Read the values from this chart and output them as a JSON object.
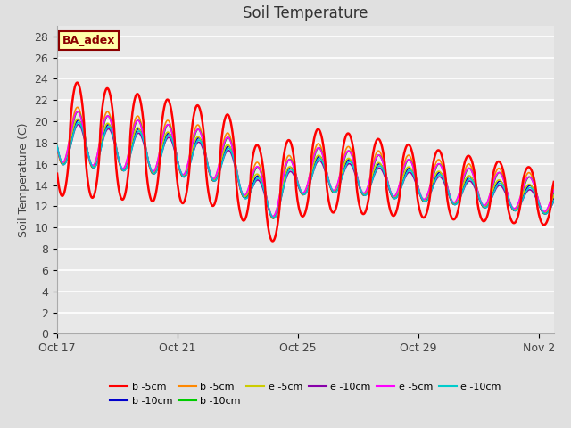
{
  "title": "Soil Temperature",
  "ylabel": "Soil Temperature (C)",
  "xlim_start": 0,
  "xlim_end": 16.5,
  "ylim": [
    0,
    29
  ],
  "yticks": [
    0,
    2,
    4,
    6,
    8,
    10,
    12,
    14,
    16,
    18,
    20,
    22,
    24,
    26,
    28
  ],
  "xtick_positions": [
    0,
    4,
    8,
    12,
    16
  ],
  "xtick_labels": [
    "Oct 17",
    "Oct 21",
    "Oct 25",
    "Oct 29",
    "Nov 2"
  ],
  "bg_color": "#e0e0e0",
  "plot_bg_color": "#e8e8e8",
  "grid_color": "#ffffff",
  "annotation_text": "BA_adex",
  "annotation_color": "#8B0000",
  "annotation_bg": "#ffffaa",
  "legend_entries": [
    {
      "label": "b -5cm",
      "color": "#ff0000",
      "lw": 1.8
    },
    {
      "label": "b -10cm",
      "color": "#0000cc",
      "lw": 1.2
    },
    {
      "label": "b -5cm",
      "color": "#ff8800",
      "lw": 1.2
    },
    {
      "label": "b -10cm",
      "color": "#00cc00",
      "lw": 1.2
    },
    {
      "label": "e -5cm",
      "color": "#cccc00",
      "lw": 1.2
    },
    {
      "label": "e -10cm",
      "color": "#8800aa",
      "lw": 1.2
    },
    {
      "label": "e -5cm",
      "color": "#ff00ff",
      "lw": 1.2
    },
    {
      "label": "e -10cm",
      "color": "#00cccc",
      "lw": 1.2
    }
  ]
}
